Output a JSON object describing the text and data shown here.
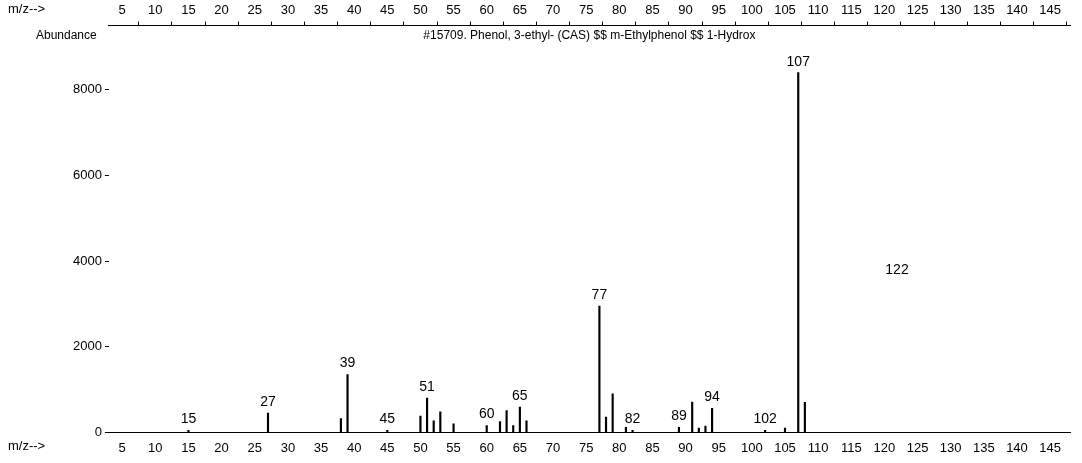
{
  "chart_data": {
    "type": "bar",
    "title": "#15709. Phenol, 3-ethyl- (CAS) $$ m-Ethylphenol $$ 1-Hydrox",
    "ylabel": "Abundance",
    "xlabel": "m/z-->",
    "x2label": "m/z-->",
    "x": [
      15,
      27,
      38,
      39,
      45,
      50,
      51,
      52,
      53,
      55,
      60,
      62,
      63,
      64,
      65,
      66,
      77,
      78,
      79,
      81,
      82,
      89,
      91,
      92,
      93,
      94,
      102,
      105,
      107,
      108
    ],
    "values": [
      50,
      450,
      320,
      1350,
      50,
      380,
      800,
      270,
      480,
      200,
      160,
      250,
      510,
      160,
      590,
      270,
      2950,
      360,
      900,
      120,
      50,
      120,
      710,
      100,
      150,
      560,
      50,
      100,
      8400,
      700
    ],
    "color": "#000000",
    "annotations": [
      "122",
      {
        "text": "15",
        "x": 15,
        "y": 50
      },
      {
        "text": "27",
        "x": 27,
        "y": 450
      },
      {
        "text": "39",
        "x": 39,
        "y": 1350
      },
      {
        "text": "45",
        "x": 45,
        "y": 50
      },
      {
        "text": "51",
        "x": 51,
        "y": 800
      },
      {
        "text": "60",
        "x": 60,
        "y": 160
      },
      {
        "text": "65",
        "x": 65,
        "y": 590
      },
      {
        "text": "77",
        "x": 77,
        "y": 2950
      },
      {
        "text": "82",
        "x": 82,
        "y": 50
      },
      {
        "text": "89",
        "x": 89,
        "y": 120
      },
      {
        "text": "94",
        "x": 94,
        "y": 560
      },
      {
        "text": "102",
        "x": 102,
        "y": 50
      },
      {
        "text": "107",
        "x": 107,
        "y": 8400
      }
    ],
    "xlim": [
      3,
      148
    ],
    "xticks": [
      5,
      10,
      15,
      20,
      25,
      30,
      35,
      40,
      45,
      50,
      55,
      60,
      65,
      70,
      75,
      80,
      85,
      90,
      95,
      100,
      105,
      110,
      115,
      120,
      125,
      130,
      135,
      140,
      145
    ],
    "x2lim": [
      3,
      148
    ],
    "x2ticks": [
      5,
      10,
      15,
      20,
      25,
      30,
      35,
      40,
      45,
      50,
      55,
      60,
      65,
      70,
      75,
      80,
      85,
      90,
      95,
      100,
      105,
      110,
      115,
      120,
      125,
      130,
      135,
      140,
      145
    ],
    "ylim": [
      0,
      9500
    ],
    "yticks": [
      0,
      2000,
      4000,
      6000,
      8000
    ],
    "grid": false,
    "legend": false
  }
}
